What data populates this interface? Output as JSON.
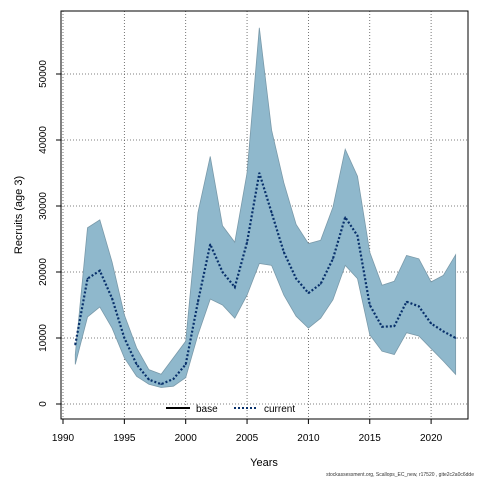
{
  "chart_data": {
    "type": "line",
    "title": "",
    "xlabel": "Years",
    "ylabel": "Recruits (age 3)",
    "xlim": [
      1990,
      2023
    ],
    "ylim": [
      0,
      58000
    ],
    "x_ticks": [
      1990,
      1995,
      2000,
      2005,
      2010,
      2015,
      2020
    ],
    "y_ticks": [
      0,
      10000,
      20000,
      30000,
      40000,
      50000
    ],
    "x_tick_labels": [
      "1990",
      "1995",
      "2000",
      "2005",
      "2010",
      "2015",
      "2020"
    ],
    "y_tick_labels": [
      "0",
      "10000",
      "20000",
      "30000",
      "40000",
      "50000"
    ],
    "grid": true,
    "legend_position": "bottom-center",
    "x": [
      1991,
      1992,
      1993,
      1994,
      1995,
      1996,
      1997,
      1998,
      1999,
      2000,
      2001,
      2002,
      2003,
      2004,
      2005,
      2006,
      2007,
      2008,
      2009,
      2010,
      2011,
      2012,
      2013,
      2014,
      2015,
      2016,
      2017,
      2018,
      2019,
      2020,
      2021,
      2022
    ],
    "series": [
      {
        "name": "current",
        "style": "dotted",
        "color": "#08306b",
        "values": [
          9000,
          19000,
          20200,
          16000,
          10000,
          6000,
          3700,
          3000,
          3800,
          6000,
          15500,
          24200,
          20000,
          17700,
          24500,
          35000,
          29000,
          23000,
          19000,
          16800,
          18200,
          22000,
          28300,
          25500,
          15000,
          11700,
          11800,
          15500,
          14800,
          12200,
          11000,
          10000
        ]
      }
    ],
    "band": {
      "color": "#8fb8cc",
      "upper": [
        7500,
        26700,
        27900,
        21500,
        13500,
        8500,
        5200,
        4500,
        7000,
        9500,
        29000,
        37500,
        27000,
        24500,
        35000,
        57000,
        41500,
        33500,
        27200,
        24300,
        24800,
        29800,
        38600,
        34500,
        23000,
        18000,
        18600,
        22500,
        22000,
        18500,
        19500,
        22600
      ],
      "lower": [
        6000,
        13200,
        14700,
        11500,
        7000,
        4200,
        3000,
        2500,
        2700,
        4000,
        10500,
        15900,
        15000,
        13000,
        16500,
        21300,
        21000,
        16500,
        13300,
        11500,
        13000,
        15800,
        21000,
        19000,
        10500,
        8000,
        7500,
        10800,
        10300,
        8400,
        6500,
        4500
      ]
    },
    "legend": [
      {
        "label": "base",
        "style": "solid",
        "color": "#000000"
      },
      {
        "label": "current",
        "style": "dotted",
        "color": "#08306b"
      }
    ]
  },
  "footer_text": "stockassessment.org, Scallops_EC_new, r17520 , gite2c2a0c6dde"
}
